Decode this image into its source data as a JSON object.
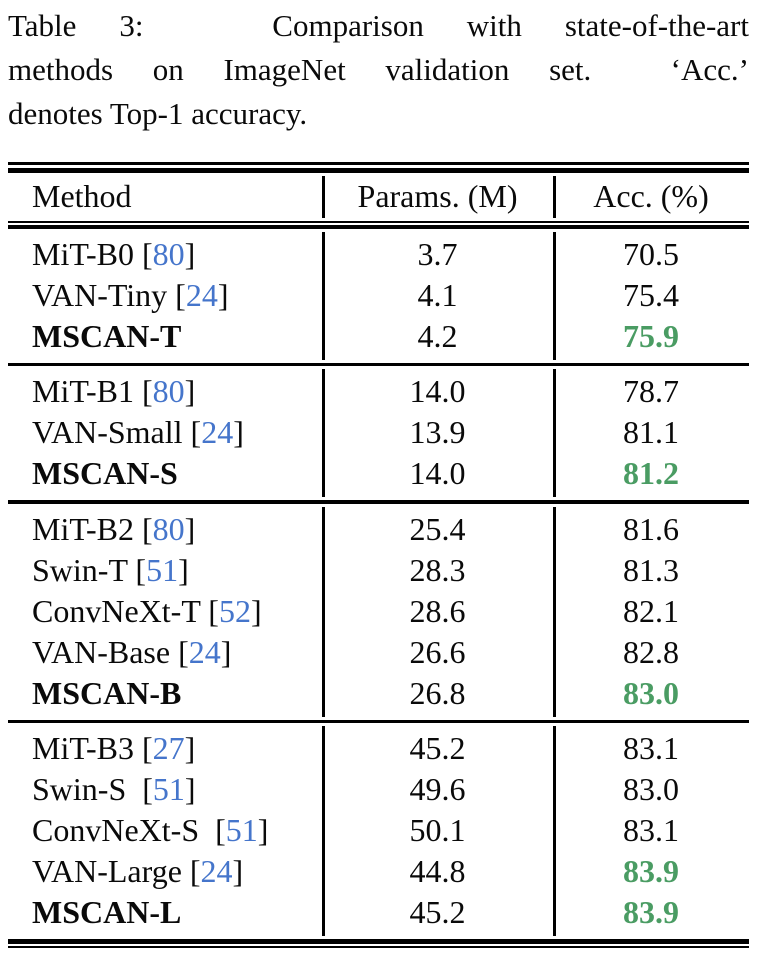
{
  "caption": {
    "lines": [
      "Table 3:   Comparison with state-of-the-art",
      "methods on ImageNet validation set.  ‘Acc.’",
      "denotes Top-1 accuracy."
    ]
  },
  "table": {
    "header": {
      "method": "Method",
      "params": "Params. (M)",
      "acc": "Acc. (%)"
    },
    "cite_brackets": {
      "open": "[",
      "close": "]"
    },
    "colors": {
      "citation_blue": "#4575cb",
      "highlight_green": "#4a9c63",
      "text_black": "#0a0a0a",
      "rule_black": "#000000"
    },
    "groups": [
      {
        "rows": [
          {
            "method": "MiT-B0",
            "cite": "80",
            "params": "3.7",
            "acc": "70.5",
            "method_bold": false,
            "acc_highlight": false
          },
          {
            "method": "VAN-Tiny",
            "cite": "24",
            "params": "4.1",
            "acc": "75.4",
            "method_bold": false,
            "acc_highlight": false
          },
          {
            "method": "MSCAN-T",
            "cite": null,
            "params": "4.2",
            "acc": "75.9",
            "method_bold": true,
            "acc_highlight": true
          }
        ]
      },
      {
        "rows": [
          {
            "method": "MiT-B1",
            "cite": "80",
            "params": "14.0",
            "acc": "78.7",
            "method_bold": false,
            "acc_highlight": false
          },
          {
            "method": "VAN-Small",
            "cite": "24",
            "params": "13.9",
            "acc": "81.1",
            "method_bold": false,
            "acc_highlight": false
          },
          {
            "method": "MSCAN-S",
            "cite": null,
            "params": "14.0",
            "acc": "81.2",
            "method_bold": true,
            "acc_highlight": true
          }
        ]
      },
      {
        "rows": [
          {
            "method": "MiT-B2",
            "cite": "80",
            "params": "25.4",
            "acc": "81.6",
            "method_bold": false,
            "acc_highlight": false
          },
          {
            "method": "Swin-T",
            "cite": "51",
            "params": "28.3",
            "acc": "81.3",
            "method_bold": false,
            "acc_highlight": false
          },
          {
            "method": "ConvNeXt-T",
            "cite": "52",
            "params": "28.6",
            "acc": "82.1",
            "method_bold": false,
            "acc_highlight": false
          },
          {
            "method": "VAN-Base",
            "cite": "24",
            "params": "26.6",
            "acc": "82.8",
            "method_bold": false,
            "acc_highlight": false
          },
          {
            "method": "MSCAN-B",
            "cite": null,
            "params": "26.8",
            "acc": "83.0",
            "method_bold": true,
            "acc_highlight": true
          }
        ]
      },
      {
        "rows": [
          {
            "method": "MiT-B3",
            "cite": "27",
            "params": "45.2",
            "acc": "83.1",
            "method_bold": false,
            "acc_highlight": false
          },
          {
            "method": "Swin-S ",
            "cite": "51",
            "params": "49.6",
            "acc": "83.0",
            "method_bold": false,
            "acc_highlight": false
          },
          {
            "method": "ConvNeXt-S ",
            "cite": "51",
            "params": "50.1",
            "acc": "83.1",
            "method_bold": false,
            "acc_highlight": false
          },
          {
            "method": "VAN-Large",
            "cite": "24",
            "params": "44.8",
            "acc": "83.9",
            "method_bold": false,
            "acc_highlight": true
          },
          {
            "method": "MSCAN-L",
            "cite": null,
            "params": "45.2",
            "acc": "83.9",
            "method_bold": true,
            "acc_highlight": true
          }
        ]
      }
    ]
  }
}
